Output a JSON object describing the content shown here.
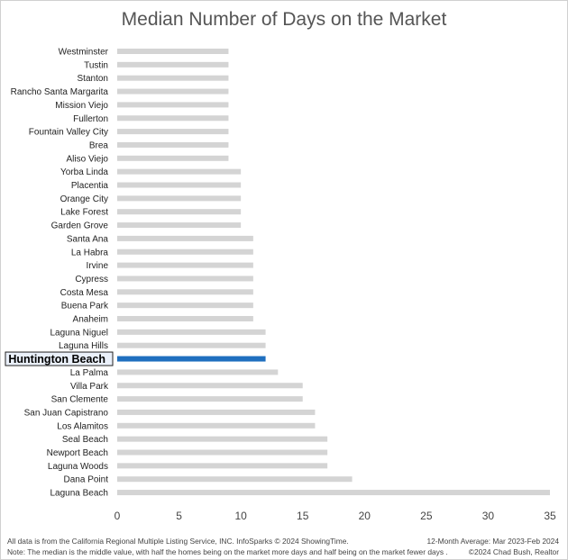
{
  "chart_data": {
    "type": "bar",
    "orientation": "horizontal",
    "title": "Median Number of Days on the Market",
    "categories": [
      "Westminster",
      "Tustin",
      "Stanton",
      "Rancho Santa Margarita",
      "Mission Viejo",
      "Fullerton",
      "Fountain Valley City",
      "Brea",
      "Aliso Viejo",
      "Yorba Linda",
      "Placentia",
      "Orange City",
      "Lake Forest",
      "Garden Grove",
      "Santa Ana",
      "La Habra",
      "Irvine",
      "Cypress",
      "Costa Mesa",
      "Buena Park",
      "Anaheim",
      "Laguna Niguel",
      "Laguna Hills",
      "Huntington Beach",
      "La Palma",
      "Villa Park",
      "San Clemente",
      "San Juan Capistrano",
      "Los Alamitos",
      "Seal Beach",
      "Newport Beach",
      "Laguna Woods",
      "Dana Point",
      "Laguna Beach"
    ],
    "values": [
      9,
      9,
      9,
      9,
      9,
      9,
      9,
      9,
      9,
      10,
      10,
      10,
      10,
      10,
      11,
      11,
      11,
      11,
      11,
      11,
      11,
      12,
      12,
      12,
      13,
      15,
      15,
      16,
      16,
      17,
      17,
      17,
      19,
      35
    ],
    "highlight": "Huntington Beach",
    "xlim": [
      0,
      35
    ],
    "xticks": [
      0,
      5,
      10,
      15,
      20,
      25,
      30,
      35
    ],
    "grid": false,
    "legend": "none",
    "colors": {
      "bar": "#d4d4d4",
      "highlight": "#1f6fbf"
    }
  },
  "footer": {
    "left_line1": "All data is from the California Regional Multiple Listing Service, INC. InfoSparks © 2024 ShowingTime.",
    "left_line2": "Note: The median is the middle value, with half the homes being on the market more days and half being on the market fewer days .",
    "right_line1": "12-Month Average: Mar 2023-Feb 2024",
    "right_line2": "©2024 Chad Bush, Realtor"
  }
}
